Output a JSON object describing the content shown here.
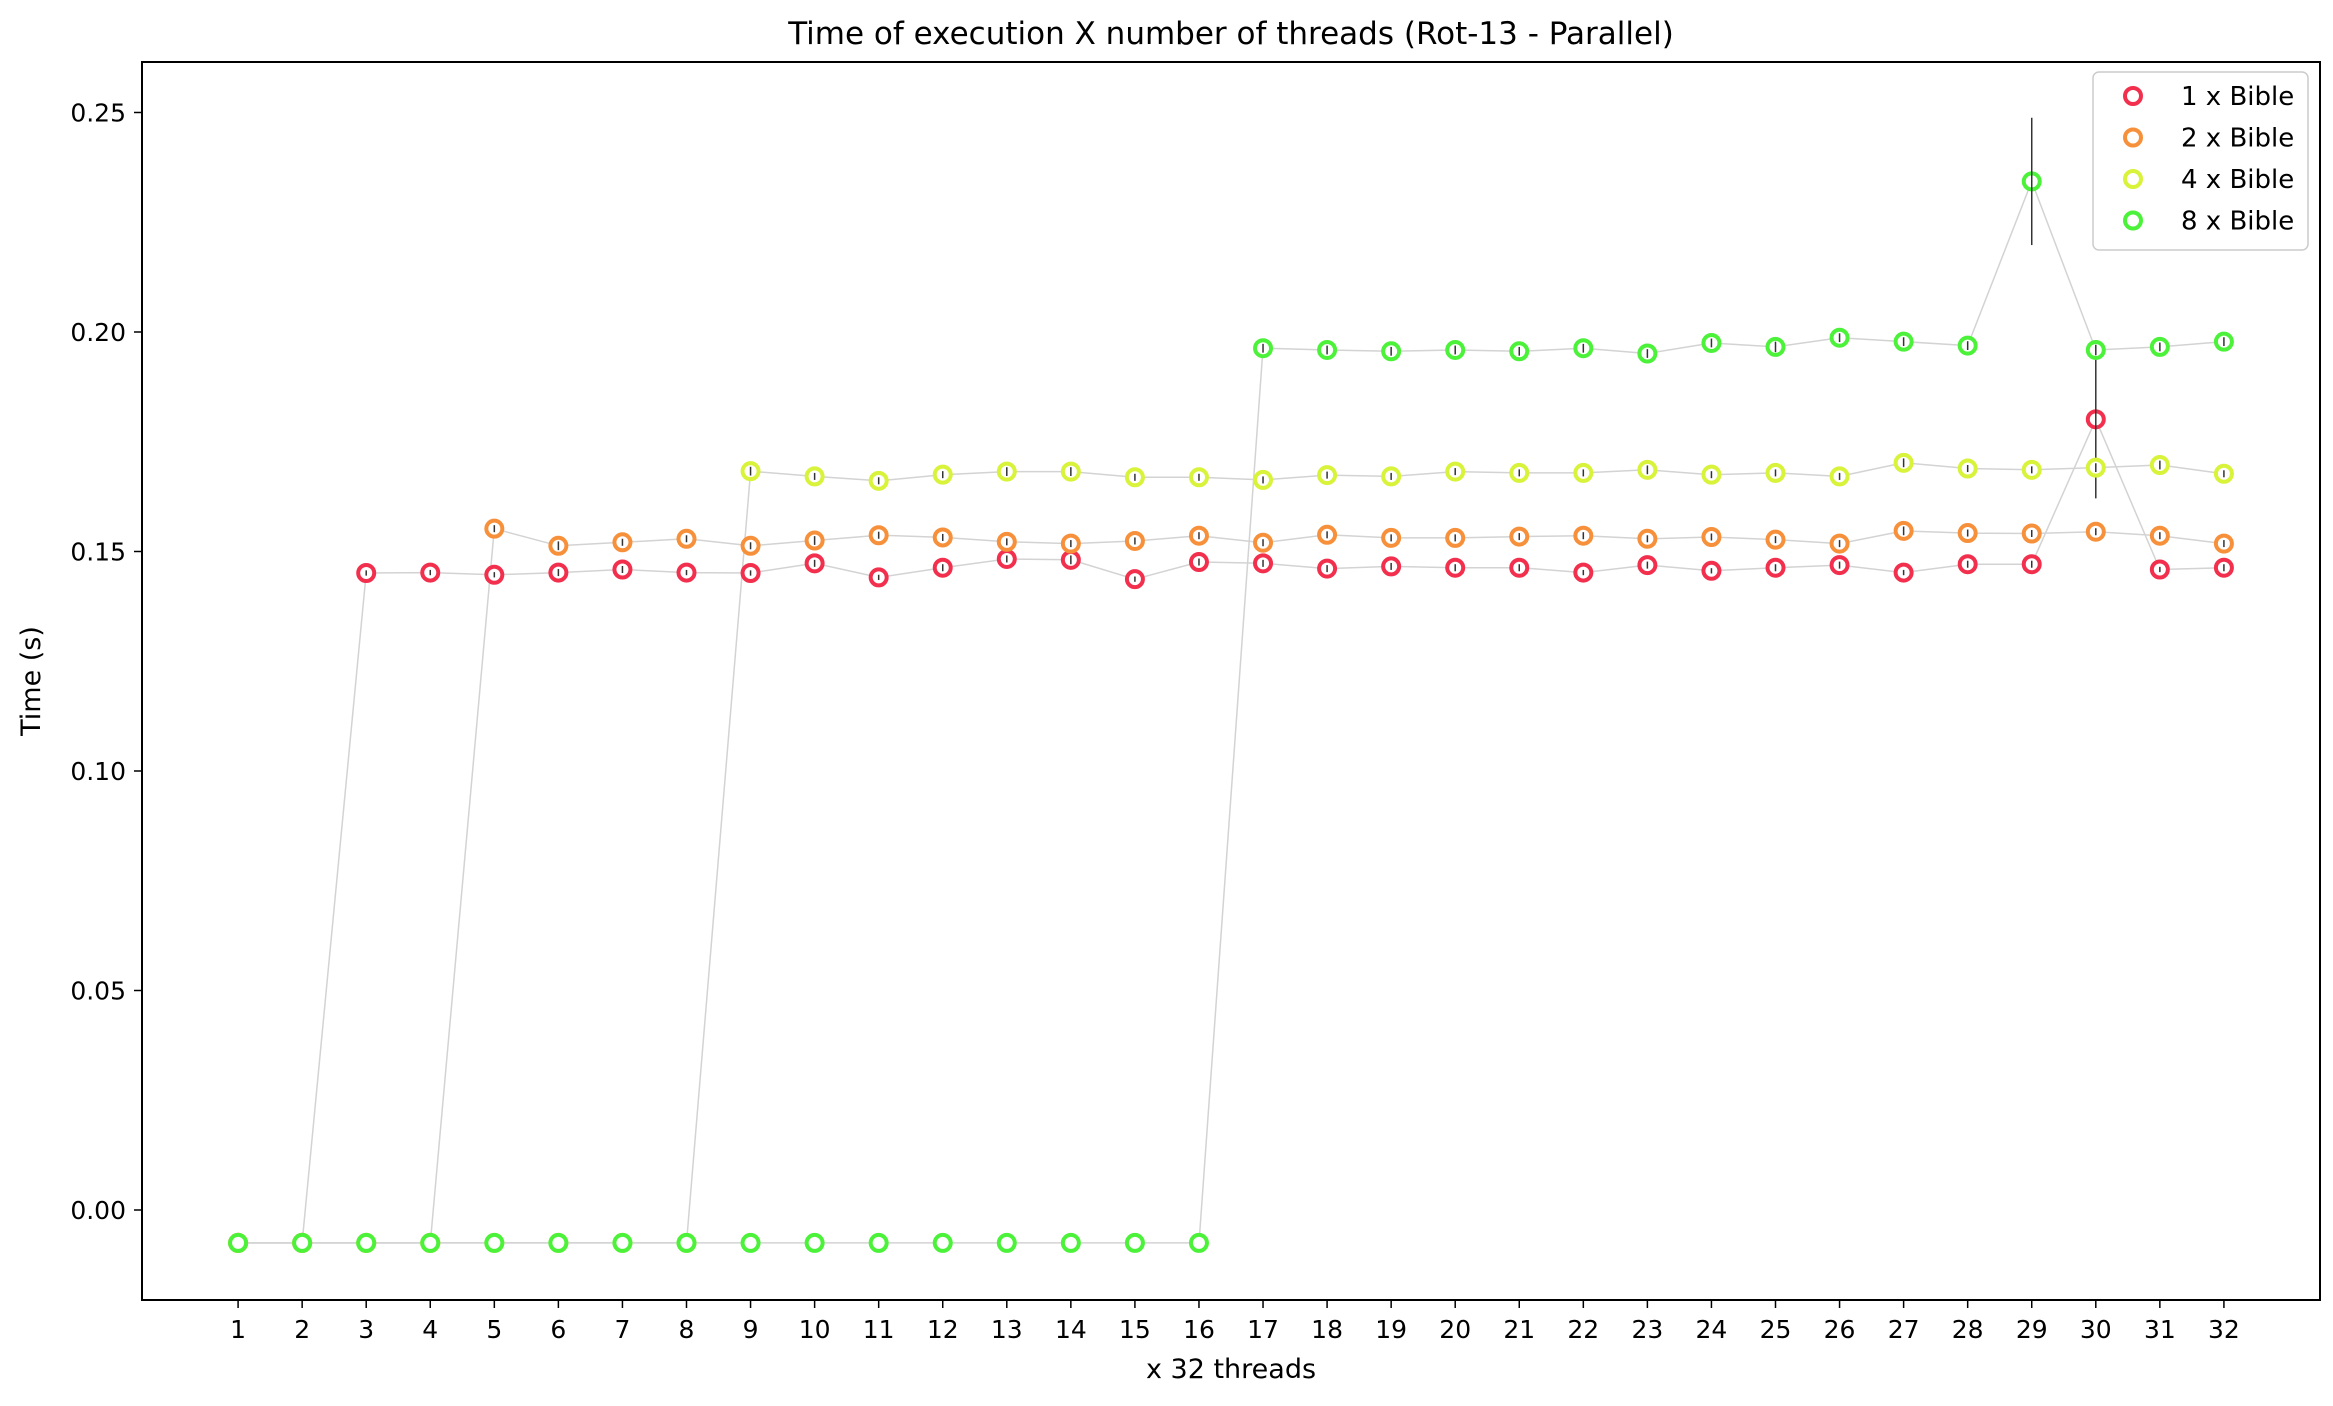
{
  "chart_data": {
    "type": "scatter",
    "title": "Time of execution X number of threads (Rot-13 - Parallel)",
    "xlabel": "x 32 threads",
    "ylabel": "Time (s)",
    "x": [
      1,
      2,
      3,
      4,
      5,
      6,
      7,
      8,
      9,
      10,
      11,
      12,
      13,
      14,
      15,
      16,
      17,
      18,
      19,
      20,
      21,
      22,
      23,
      24,
      25,
      26,
      27,
      28,
      29,
      30,
      31,
      32
    ],
    "xlim": [
      -0.5,
      33.5
    ],
    "ylim": [
      -0.0205,
      0.2615
    ],
    "yticks": [
      0.0,
      0.05,
      0.1,
      0.15,
      0.2,
      0.25
    ],
    "ytick_labels": [
      "0.00",
      "0.05",
      "0.10",
      "0.15",
      "0.20",
      "0.25"
    ],
    "grid": false,
    "legend_position": "top-right",
    "marker": "hollow-circle",
    "connector_color": "#d3d3d3",
    "errorbar_color": "#333333",
    "series": [
      {
        "name": "1 x Bible",
        "color": "#f2304e",
        "values": [
          -0.0075,
          -0.0075,
          0.1451,
          0.1452,
          0.1447,
          0.1452,
          0.1459,
          0.1452,
          0.1451,
          0.1473,
          0.1441,
          0.1463,
          0.1483,
          0.1481,
          0.1437,
          0.1476,
          0.1473,
          0.1461,
          0.1466,
          0.1463,
          0.1463,
          0.1452,
          0.1469,
          0.1456,
          0.1463,
          0.1469,
          0.1452,
          0.1471,
          0.1471,
          0.1801,
          0.1459,
          0.1463
        ],
        "errors": [
          0,
          0,
          0.0006,
          0.0006,
          0.0006,
          0.0008,
          0.0008,
          0.0006,
          0.0006,
          0.0008,
          0.0006,
          0.0008,
          0.0008,
          0.001,
          0.0006,
          0.0008,
          0.0008,
          0.0008,
          0.0008,
          0.0008,
          0.0008,
          0.0006,
          0.0008,
          0.0006,
          0.0008,
          0.0008,
          0.0006,
          0.0008,
          0.0008,
          0.018,
          0.0006,
          0.0008
        ]
      },
      {
        "name": "2 x Bible",
        "color": "#f7903a",
        "values": [
          -0.0075,
          -0.0075,
          -0.0075,
          -0.0075,
          0.1552,
          0.1513,
          0.1521,
          0.1529,
          0.1513,
          0.1525,
          0.1537,
          0.1532,
          0.1522,
          0.1518,
          0.1524,
          0.1536,
          0.152,
          0.1538,
          0.1531,
          0.1531,
          0.1534,
          0.1536,
          0.1529,
          0.1533,
          0.1527,
          0.1518,
          0.1547,
          0.1542,
          0.1541,
          0.1545,
          0.1536,
          0.1518
        ],
        "errors": [
          0,
          0,
          0,
          0,
          0.0008,
          0.001,
          0.0008,
          0.0008,
          0.0008,
          0.001,
          0.0008,
          0.0008,
          0.0008,
          0.0008,
          0.0008,
          0.0008,
          0.0008,
          0.0008,
          0.0008,
          0.0008,
          0.0008,
          0.0008,
          0.0008,
          0.0008,
          0.0008,
          0.0008,
          0.001,
          0.0008,
          0.0008,
          0.0008,
          0.0008,
          0.0008
        ]
      },
      {
        "name": "4 x Bible",
        "color": "#d9f23a",
        "values": [
          -0.0075,
          -0.0075,
          -0.0075,
          -0.0075,
          -0.0075,
          -0.0075,
          -0.0075,
          -0.0075,
          0.1683,
          0.1671,
          0.1661,
          0.1675,
          0.1682,
          0.1682,
          0.1669,
          0.1669,
          0.1663,
          0.1674,
          0.1671,
          0.1682,
          0.1679,
          0.1679,
          0.1686,
          0.1675,
          0.1679,
          0.1671,
          0.1702,
          0.1689,
          0.1686,
          0.1691,
          0.1697,
          0.1677
        ],
        "errors": [
          0,
          0,
          0,
          0,
          0,
          0,
          0,
          0,
          0.001,
          0.0008,
          0.0008,
          0.0008,
          0.001,
          0.001,
          0.0008,
          0.0008,
          0.0008,
          0.0008,
          0.0008,
          0.0008,
          0.0008,
          0.0008,
          0.001,
          0.0008,
          0.0008,
          0.0008,
          0.001,
          0.0008,
          0.0008,
          0.001,
          0.001,
          0.0008
        ]
      },
      {
        "name": "8 x Bible",
        "color": "#4cf23a",
        "values": [
          -0.0075,
          -0.0075,
          -0.0075,
          -0.0075,
          -0.0075,
          -0.0075,
          -0.0075,
          -0.0075,
          -0.0075,
          -0.0075,
          -0.0075,
          -0.0075,
          -0.0075,
          -0.0075,
          -0.0075,
          -0.0075,
          0.1963,
          0.1959,
          0.1956,
          0.1959,
          0.1956,
          0.1963,
          0.1951,
          0.1975,
          0.1966,
          0.1987,
          0.1978,
          0.1969,
          0.2343,
          0.1959,
          0.1966,
          0.1978
        ],
        "errors": [
          0,
          0,
          0,
          0,
          0,
          0,
          0,
          0,
          0,
          0,
          0,
          0,
          0,
          0,
          0,
          0,
          0.001,
          0.001,
          0.001,
          0.001,
          0.001,
          0.001,
          0.001,
          0.001,
          0.0012,
          0.001,
          0.001,
          0.001,
          0.0145,
          0.0012,
          0.001,
          0.001
        ]
      }
    ]
  }
}
